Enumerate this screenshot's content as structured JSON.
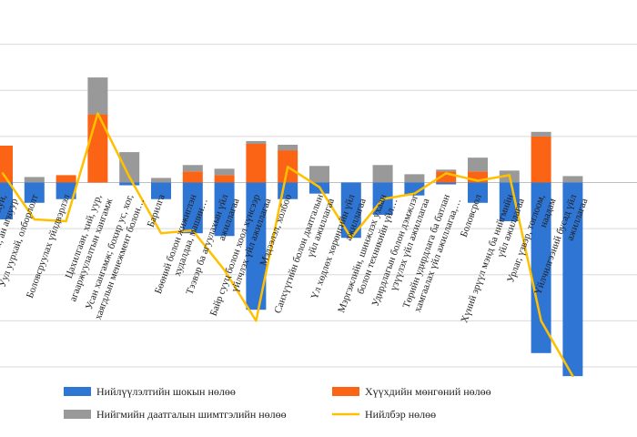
{
  "chart_data": {
    "type": "bar",
    "stacked": true,
    "title": "",
    "xlabel": "",
    "ylabel": "",
    "ylim": [
      -200,
      200
    ],
    "grid": true,
    "legend_position": "bottom",
    "categories": [
      "Газар тариалан, мал аж ахуй, загас барилт, ан агнуур",
      "Уул уурхай, олборлолт",
      "Боловсруулах үйлдвэрлэл",
      "Цахилгаан, хий, уур, агааржуулалтын хангамж",
      "Усан хангамж; бохир ус, хог, хаягдлын менежмент болон…",
      "Барилга",
      "Бөөний болон жижиглэн худалдаа, машин…",
      "Тээвэр ба агуулахын үйл ажиллагаа",
      "Байр сууц болон хоол хүнсээр үйлчлэх үйл ажиллагаа",
      "Мэдээлэл, холбоо",
      "Санхүүгийн болон даатгалын үйл ажиллагаа",
      "Үл хөдлөх хөрөнгийн үйл ажиллагаа",
      "Мэргэжлийн, шинжлэх ухаан болон техникийн үйл…",
      "Удирдлагын болон дэмжлэг үзүүлэх үйл ажиллагаа",
      "Төрийн удирдлага ба батлан хамгаалах үйл ажиллагаа,…",
      "Боловсрол",
      "Хүний эрүүл мэнд ба нийгмийн үйл ажиллагаа",
      "Урлаг, үзвэр, тоглоом, наадам",
      "Үйлчилгээний бусад үйл ажиллагаа"
    ],
    "series": [
      {
        "name": "Нийлүүлэлтийн шокын нөлөө",
        "color": "#2e75d4",
        "values": [
          -40,
          -22,
          -18,
          0,
          -3,
          -18,
          -55,
          -58,
          -138,
          -18,
          -12,
          -60,
          -35,
          -14,
          -2,
          -22,
          -42,
          -185,
          -210
        ]
      },
      {
        "name": "Хүүхдийн мөнгөний нөлөө",
        "color": "#fa6414",
        "values": [
          40,
          0,
          8,
          74,
          0,
          0,
          12,
          8,
          42,
          35,
          0,
          0,
          0,
          0,
          12,
          12,
          0,
          50,
          0
        ]
      },
      {
        "name": "Нийгмийн даатгалын шимтгэлийн нөлөө",
        "color": "#999999",
        "values": [
          0,
          6,
          0,
          40,
          33,
          5,
          7,
          7,
          3,
          6,
          18,
          0,
          19,
          9,
          2,
          15,
          13,
          5,
          7
        ]
      },
      {
        "name": "Нийлбэр нөлөө",
        "color": "#ffc000",
        "type": "line",
        "values": [
          10,
          -40,
          -42,
          75,
          6,
          -55,
          -52,
          -95,
          -150,
          17,
          -5,
          -60,
          -18,
          -12,
          10,
          2,
          8,
          -150,
          -210
        ]
      }
    ]
  }
}
